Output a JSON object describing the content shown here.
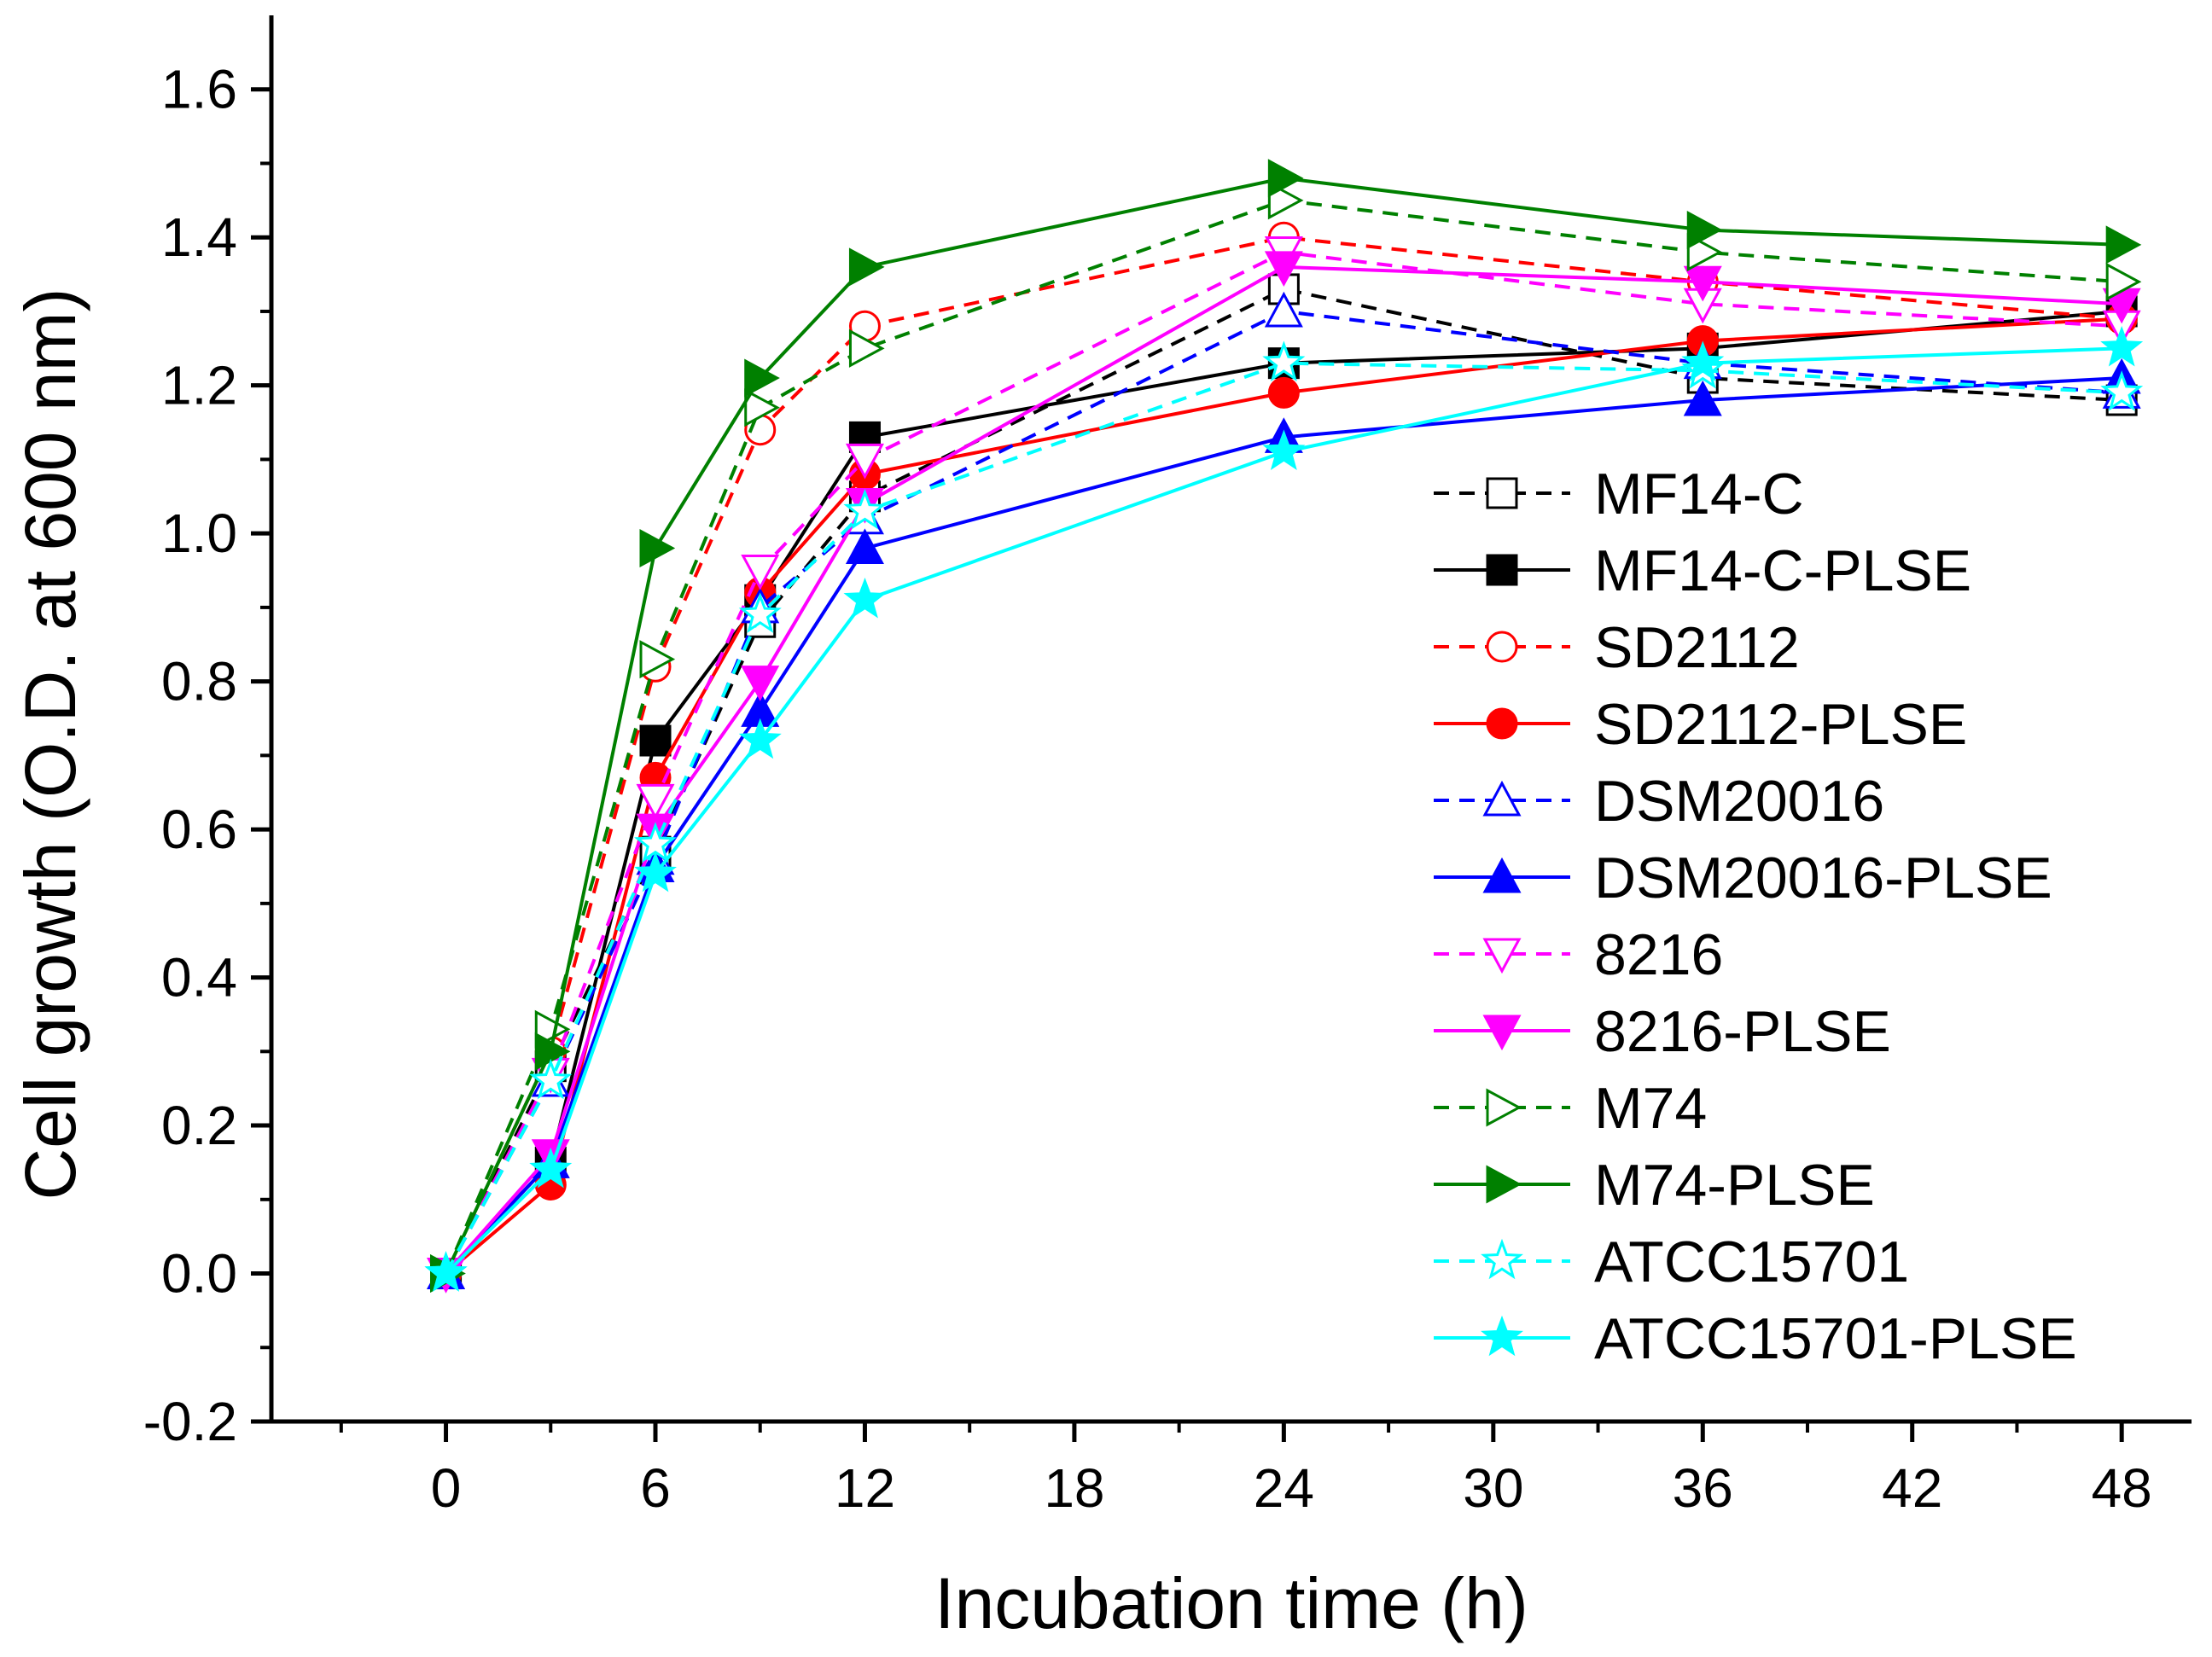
{
  "chart_data": {
    "type": "line",
    "title": "",
    "xlabel": "Incubation time (h)",
    "ylabel": "Cell growth (O.D. at 600 nm)",
    "xlim": [
      -5,
      50
    ],
    "ylim": [
      -0.2,
      1.7
    ],
    "xticks": [
      0,
      6,
      12,
      18,
      24,
      30,
      36,
      42,
      48
    ],
    "yticks": [
      -0.2,
      0.0,
      0.2,
      0.4,
      0.6,
      0.8,
      1.0,
      1.2,
      1.4,
      1.6
    ],
    "x_tick_labels": [
      "0",
      "6",
      "12",
      "18",
      "24",
      "30",
      "36",
      "42",
      "48"
    ],
    "y_tick_labels": [
      "-0.2",
      "0.0",
      "0.2",
      "0.4",
      "0.6",
      "0.8",
      "1.0",
      "1.2",
      "1.4",
      "1.6"
    ],
    "legend_position": "right",
    "x": [
      0,
      3,
      6,
      9,
      12,
      24,
      36,
      48
    ],
    "series": [
      {
        "name": "MF14-C",
        "color": "#000000",
        "dashed": true,
        "marker": "square",
        "filled": false,
        "values": [
          0.0,
          0.28,
          0.57,
          0.88,
          1.05,
          1.33,
          1.21,
          1.18
        ]
      },
      {
        "name": "MF14-C-PLSE",
        "color": "#000000",
        "dashed": false,
        "marker": "square",
        "filled": true,
        "values": [
          0.0,
          0.15,
          0.72,
          0.91,
          1.13,
          1.23,
          1.25,
          1.3
        ]
      },
      {
        "name": "SD2112",
        "color": "#ff0000",
        "dashed": true,
        "marker": "circle",
        "filled": false,
        "values": [
          0.0,
          0.3,
          0.82,
          1.14,
          1.28,
          1.4,
          1.34,
          1.29
        ]
      },
      {
        "name": "SD2112-PLSE",
        "color": "#ff0000",
        "dashed": false,
        "marker": "circle",
        "filled": true,
        "values": [
          0.0,
          0.12,
          0.67,
          0.92,
          1.08,
          1.19,
          1.26,
          1.29
        ]
      },
      {
        "name": "DSM20016",
        "color": "#0000ff",
        "dashed": true,
        "marker": "triangle-up",
        "filled": false,
        "values": [
          0.0,
          0.26,
          0.56,
          0.9,
          1.02,
          1.3,
          1.23,
          1.19
        ]
      },
      {
        "name": "DSM20016-PLSE",
        "color": "#0000ff",
        "dashed": false,
        "marker": "triangle-up",
        "filled": true,
        "values": [
          0.0,
          0.15,
          0.55,
          0.76,
          0.98,
          1.13,
          1.18,
          1.21
        ]
      },
      {
        "name": "8216",
        "color": "#ff00ff",
        "dashed": true,
        "marker": "triangle-down",
        "filled": false,
        "values": [
          0.0,
          0.27,
          0.64,
          0.95,
          1.1,
          1.38,
          1.31,
          1.28
        ]
      },
      {
        "name": "8216-PLSE",
        "color": "#ff00ff",
        "dashed": false,
        "marker": "triangle-down",
        "filled": true,
        "values": [
          0.0,
          0.16,
          0.6,
          0.8,
          1.04,
          1.36,
          1.34,
          1.31
        ]
      },
      {
        "name": "M74",
        "color": "#008000",
        "dashed": true,
        "marker": "triangle-right",
        "filled": false,
        "values": [
          0.0,
          0.33,
          0.83,
          1.17,
          1.25,
          1.45,
          1.38,
          1.34
        ]
      },
      {
        "name": "M74-PLSE",
        "color": "#008000",
        "dashed": false,
        "marker": "triangle-right",
        "filled": true,
        "values": [
          0.0,
          0.3,
          0.98,
          1.21,
          1.36,
          1.48,
          1.41,
          1.39
        ]
      },
      {
        "name": "ATCC15701",
        "color": "#00ffff",
        "dashed": true,
        "marker": "star",
        "filled": false,
        "values": [
          0.0,
          0.26,
          0.58,
          0.89,
          1.03,
          1.23,
          1.22,
          1.19
        ]
      },
      {
        "name": "ATCC15701-PLSE",
        "color": "#00ffff",
        "dashed": false,
        "marker": "star",
        "filled": true,
        "values": [
          0.0,
          0.14,
          0.54,
          0.72,
          0.91,
          1.11,
          1.23,
          1.25
        ]
      }
    ]
  }
}
